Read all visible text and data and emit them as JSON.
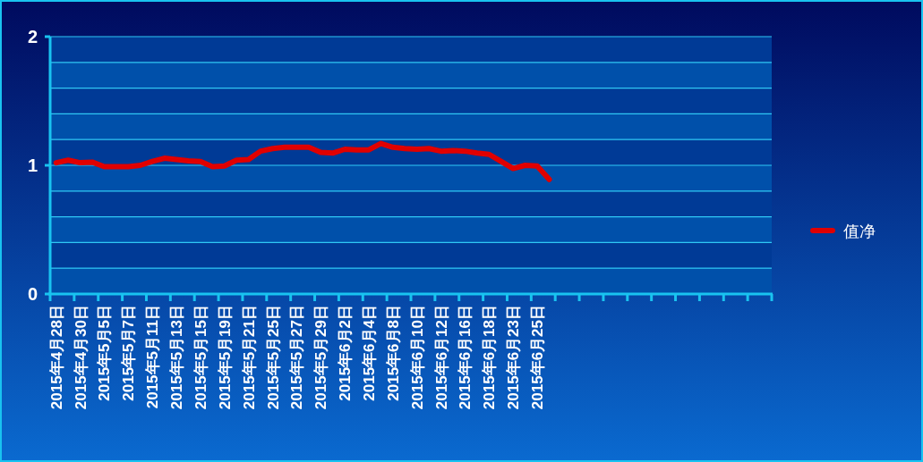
{
  "chart_data": {
    "type": "line",
    "categories": [
      "2015年4月28日",
      null,
      "2015年4月30日",
      null,
      "2015年5月5日",
      null,
      "2015年5月7日",
      null,
      "2015年5月11日",
      null,
      "2015年5月13日",
      null,
      "2015年5月15日",
      null,
      "2015年5月19日",
      null,
      "2015年5月21日",
      null,
      "2015年5月25日",
      null,
      "2015年5月27日",
      null,
      "2015年5月29日",
      null,
      "2015年6月2日",
      null,
      "2015年6月4日",
      null,
      "2015年6月8日",
      null,
      "2015年6月10日",
      null,
      "2015年6月12日",
      null,
      "2015年6月16日",
      null,
      "2015年6月18日",
      null,
      "2015年6月23日",
      null,
      "2015年6月25日",
      null,
      null,
      null,
      null,
      null,
      null,
      null,
      null,
      null,
      null,
      null,
      null,
      null,
      null,
      null,
      null,
      null,
      null,
      null
    ],
    "series": [
      {
        "name": "值净",
        "color": "#e00000",
        "values": [
          1.02,
          1.04,
          1.02,
          1.025,
          0.99,
          0.99,
          0.99,
          1.0,
          1.03,
          1.055,
          1.045,
          1.035,
          1.03,
          0.99,
          0.995,
          1.04,
          1.045,
          1.11,
          1.13,
          1.14,
          1.14,
          1.14,
          1.1,
          1.095,
          1.125,
          1.12,
          1.12,
          1.17,
          1.14,
          1.13,
          1.125,
          1.13,
          1.11,
          1.115,
          1.11,
          1.095,
          1.085,
          1.03,
          0.975,
          1.0,
          0.995,
          0.89,
          null,
          null,
          null,
          null,
          null,
          null,
          null,
          null,
          null,
          null,
          null,
          null,
          null,
          null,
          null,
          null,
          null,
          null
        ]
      }
    ],
    "ylim": [
      0,
      2
    ],
    "yticks": [
      0,
      {
        "value": 0.2,
        "label": null
      },
      {
        "value": 0.4,
        "label": null
      },
      {
        "value": 0.6,
        "label": null
      },
      {
        "value": 0.8,
        "label": null
      },
      1,
      {
        "value": 1.2,
        "label": null
      },
      {
        "value": 1.4,
        "label": null
      },
      {
        "value": 1.6,
        "label": null
      },
      {
        "value": 1.8,
        "label": null
      },
      2
    ],
    "grid": "y",
    "legend": "right",
    "marker": "none",
    "line_style": "solid"
  }
}
